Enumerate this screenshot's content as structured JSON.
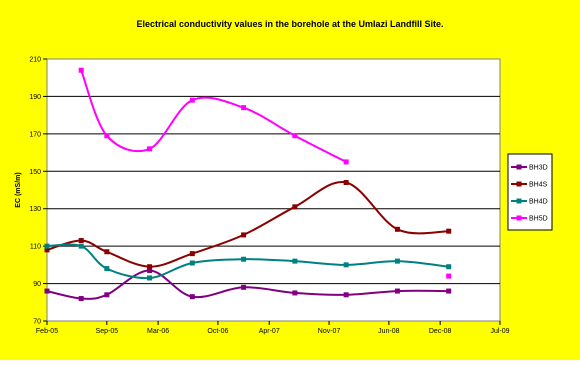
{
  "chart_data": {
    "type": "line",
    "title": "Electrical conductivity values in the borehole at the Umlazi Landfill Site.",
    "ylabel": "EC (mS/m)",
    "xlabel": "",
    "ylim": [
      70,
      210
    ],
    "yticks": [
      70,
      90,
      110,
      130,
      150,
      170,
      190,
      210
    ],
    "xticks": [
      "Feb-05",
      "Sep-05",
      "Mar-06",
      "Oct-06",
      "Apr-07",
      "Nov-07",
      "Jun-08",
      "Dec-08",
      "Jul-09"
    ],
    "grid": "horizontal",
    "legend_position": "right",
    "background": "#FFFF00",
    "plot_background": "#FFFFFF",
    "series": [
      {
        "name": "BH3D",
        "color": "#800080",
        "marker": "square",
        "points": [
          [
            "Feb-05",
            86
          ],
          [
            "Jun-05",
            82
          ],
          [
            "Sep-05",
            84
          ],
          [
            "Feb-06",
            97
          ],
          [
            "Jul-06",
            83
          ],
          [
            "Jan-07",
            88
          ],
          [
            "Jul-07",
            85
          ],
          [
            "Jan-08",
            84
          ],
          [
            "Jul-08",
            86
          ],
          [
            "Jan-09",
            86
          ]
        ]
      },
      {
        "name": "BH4S",
        "color": "#8B0000",
        "marker": "square",
        "points": [
          [
            "Feb-05",
            108
          ],
          [
            "Jun-05",
            113
          ],
          [
            "Sep-05",
            107
          ],
          [
            "Feb-06",
            99
          ],
          [
            "Jul-06",
            106
          ],
          [
            "Jan-07",
            116
          ],
          [
            "Jul-07",
            131
          ],
          [
            "Jan-08",
            144
          ],
          [
            "Jul-08",
            119
          ],
          [
            "Jan-09",
            118
          ]
        ]
      },
      {
        "name": "BH4D",
        "color": "#008080",
        "marker": "square",
        "points": [
          [
            "Feb-05",
            110
          ],
          [
            "Jun-05",
            110
          ],
          [
            "Sep-05",
            98
          ],
          [
            "Feb-06",
            93
          ],
          [
            "Jul-06",
            101
          ],
          [
            "Jan-07",
            103
          ],
          [
            "Jul-07",
            102
          ],
          [
            "Jan-08",
            100
          ],
          [
            "Jul-08",
            102
          ],
          [
            "Jan-09",
            99
          ]
        ]
      },
      {
        "name": "BH5D",
        "color": "#FF00FF",
        "marker": "square",
        "points": [
          [
            "Jun-05",
            204
          ],
          [
            "Sep-05",
            169
          ],
          [
            "Feb-06",
            162
          ],
          [
            "Jul-06",
            188
          ],
          [
            "Jan-07",
            184
          ],
          [
            "Jul-07",
            169
          ],
          [
            "Jan-08",
            155
          ]
        ],
        "extra_points": [
          [
            "Jan-09",
            94
          ]
        ]
      }
    ]
  }
}
